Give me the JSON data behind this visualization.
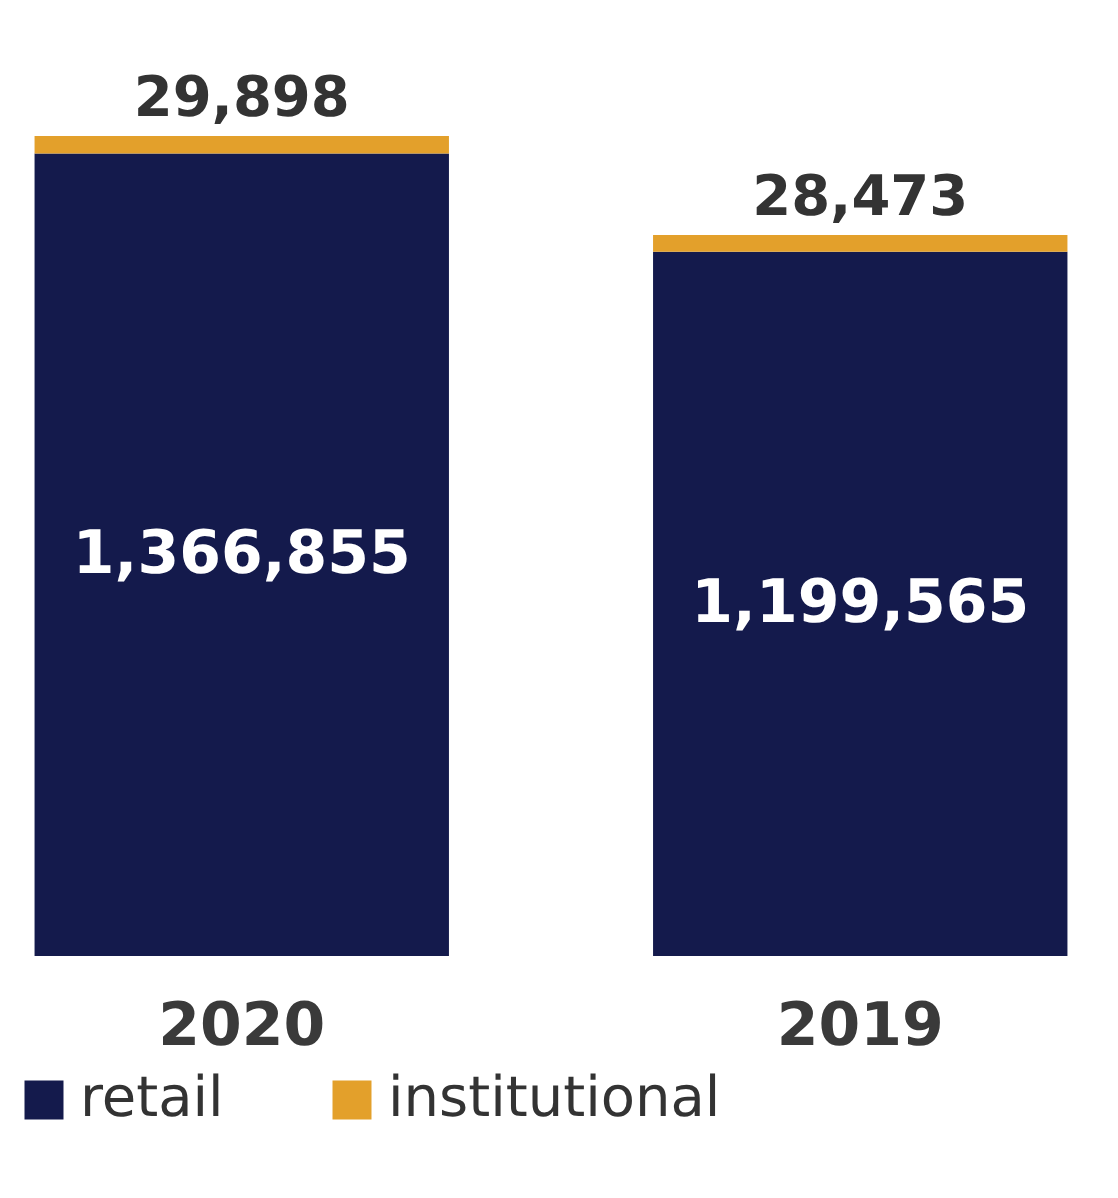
{
  "chart_data": {
    "type": "bar",
    "stacked": true,
    "categories": [
      "2020",
      "2019"
    ],
    "series": [
      {
        "name": "retail",
        "color": "#141a4c",
        "values": [
          1366855,
          1199565
        ],
        "value_labels": [
          "1,366,855",
          "1,199,565"
        ]
      },
      {
        "name": "institutional",
        "color": "#e3a02b",
        "values": [
          29898,
          28473
        ],
        "value_labels": [
          "29,898",
          "28,473"
        ]
      }
    ],
    "legend": "bottom",
    "grid": false
  }
}
